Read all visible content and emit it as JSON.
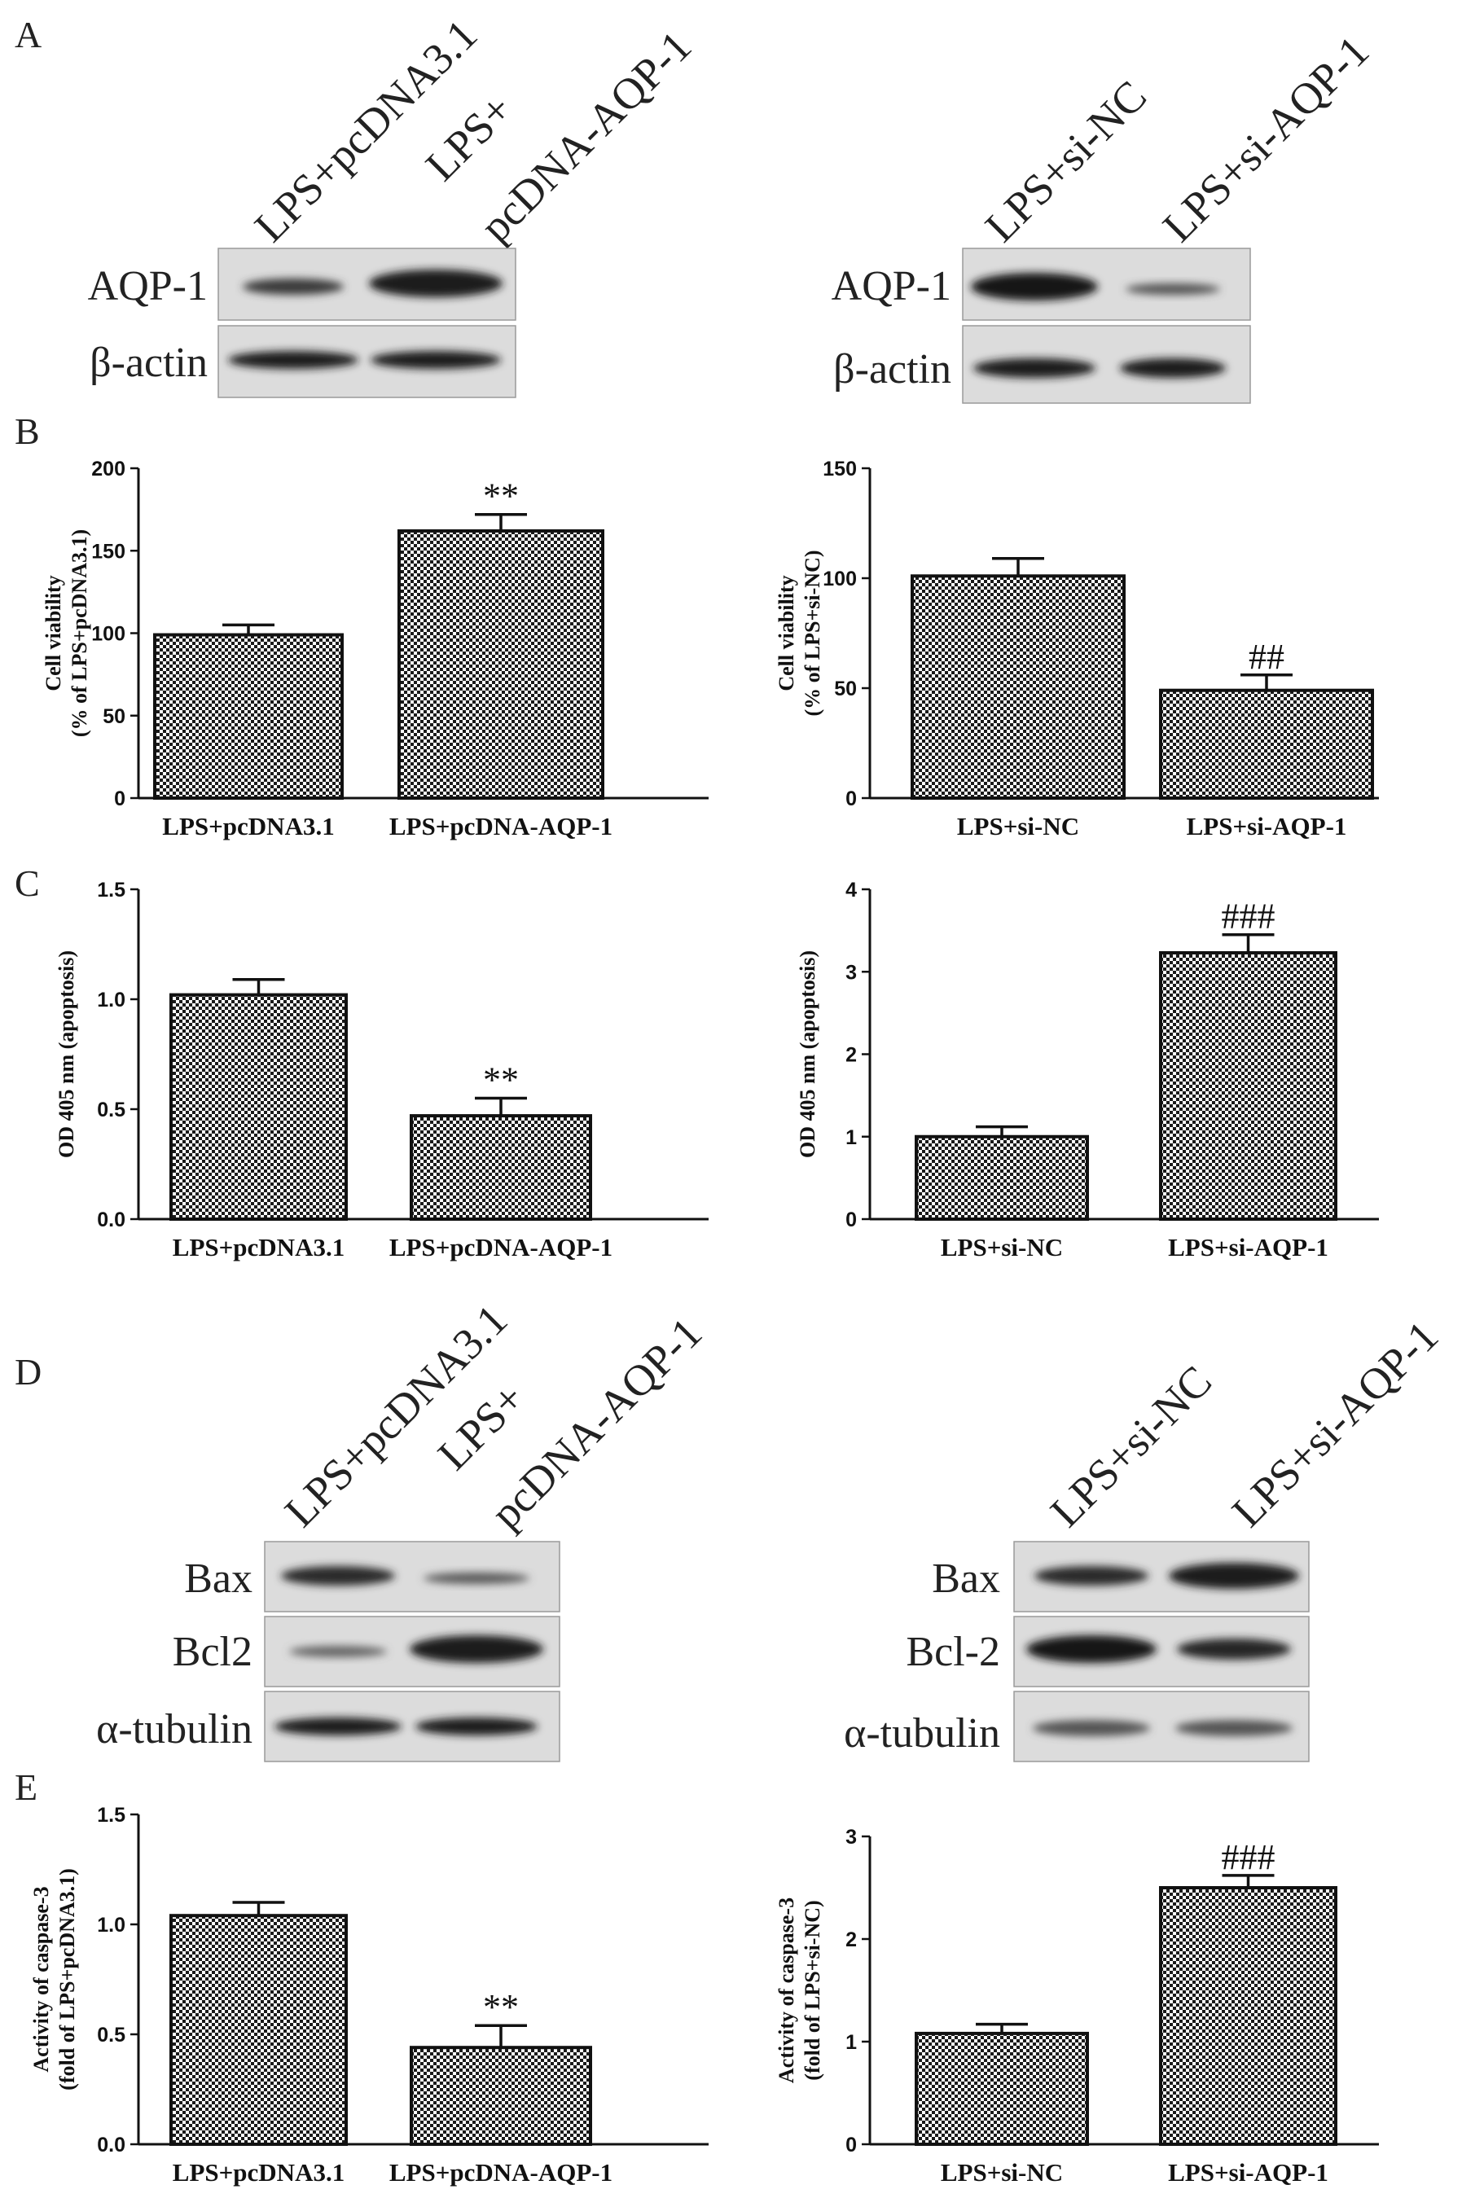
{
  "panel_labels": [
    "A",
    "B",
    "C",
    "D",
    "E"
  ],
  "blots": [
    {
      "lanes": [
        "LPS+pcDNA3.1",
        "LPS+",
        "pcDNA-AQP-1"
      ],
      "proteins": [
        "AQP-1",
        "β-actin"
      ]
    },
    {
      "lanes": [
        "LPS+si-NC",
        "LPS+si-AQP-1"
      ],
      "proteins": [
        "AQP-1",
        "β-actin"
      ]
    },
    {
      "lanes": [
        "LPS+pcDNA3.1",
        "LPS+",
        "pcDNA-AQP-1"
      ],
      "proteins": [
        "Bax",
        "Bcl2",
        "α-tubulin"
      ]
    },
    {
      "lanes": [
        "LPS+si-NC",
        "LPS+si-AQP-1"
      ],
      "proteins": [
        "Bax",
        "Bcl-2",
        "α-tubulin"
      ]
    }
  ],
  "chart_data": [
    {
      "type": "bar",
      "categories": [
        "LPS+pcDNA3.1",
        "LPS+pcDNA-AQP-1"
      ],
      "values": [
        99,
        162
      ],
      "errors": [
        6,
        10
      ],
      "annotations": [
        "",
        "**"
      ],
      "ylabel": [
        "Cell viability",
        "(% of LPS+pcDNA3.1)"
      ],
      "ylim": [
        0,
        200
      ],
      "yticks": [
        0,
        50,
        100,
        150,
        200
      ]
    },
    {
      "type": "bar",
      "categories": [
        "LPS+si-NC",
        "LPS+si-AQP-1"
      ],
      "values": [
        101,
        49
      ],
      "errors": [
        8,
        7
      ],
      "annotations": [
        "",
        "##"
      ],
      "ylabel": [
        "Cell viability",
        "(% of LPS+si-NC)"
      ],
      "ylim": [
        0,
        150
      ],
      "yticks": [
        0,
        50,
        100,
        150
      ]
    },
    {
      "type": "bar",
      "categories": [
        "LPS+pcDNA3.1",
        "LPS+pcDNA-AQP-1"
      ],
      "values": [
        1.02,
        0.47
      ],
      "errors": [
        0.07,
        0.08
      ],
      "annotations": [
        "",
        "**"
      ],
      "ylabel": [
        "OD 405 nm (apoptosis)"
      ],
      "ylim": [
        0,
        1.5
      ],
      "yticks": [
        "0.0",
        "0.5",
        "1.0",
        "1.5"
      ]
    },
    {
      "type": "bar",
      "categories": [
        "LPS+si-NC",
        "LPS+si-AQP-1"
      ],
      "values": [
        1.0,
        3.23
      ],
      "errors": [
        0.12,
        0.22
      ],
      "annotations": [
        "",
        "###"
      ],
      "ylabel": [
        "OD 405 nm (apoptosis)"
      ],
      "ylim": [
        0,
        4
      ],
      "yticks": [
        0,
        1,
        2,
        3,
        4
      ]
    },
    {
      "type": "bar",
      "categories": [
        "LPS+pcDNA3.1",
        "LPS+pcDNA-AQP-1"
      ],
      "values": [
        1.04,
        0.44
      ],
      "errors": [
        0.06,
        0.1
      ],
      "annotations": [
        "",
        "**"
      ],
      "ylabel": [
        "Activity of caspase-3",
        "(fold of LPS+pcDNA3.1)"
      ],
      "ylim": [
        0,
        1.5
      ],
      "yticks": [
        "0.0",
        "0.5",
        "1.0",
        "1.5"
      ]
    },
    {
      "type": "bar",
      "categories": [
        "LPS+si-NC",
        "LPS+si-AQP-1"
      ],
      "values": [
        1.08,
        2.5
      ],
      "errors": [
        0.09,
        0.12
      ],
      "annotations": [
        "",
        "###"
      ],
      "ylabel": [
        "Activity of caspase-3",
        "(fold of LPS+si-NC)"
      ],
      "ylim": [
        0,
        3
      ],
      "yticks": [
        0,
        1,
        2,
        3
      ]
    }
  ]
}
